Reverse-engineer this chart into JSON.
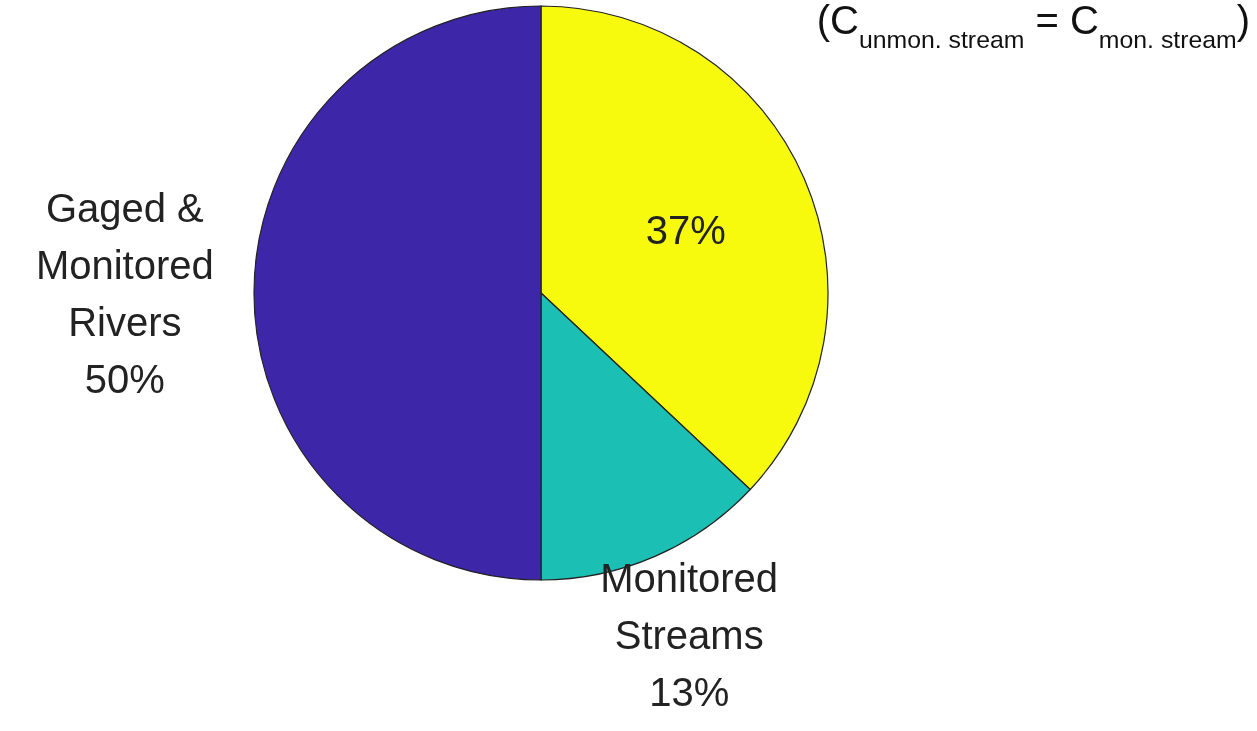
{
  "chart_data": {
    "type": "pie",
    "categories": [
      null,
      "Monitored Streams",
      "Gaged & Monitored Rivers"
    ],
    "values": [
      37,
      13,
      50
    ],
    "colors": [
      "#f8fa0d",
      "#1bbfb4",
      "#3d26a8"
    ],
    "value_labels": [
      "37%",
      "13%",
      "50%"
    ],
    "annotations": [
      "(C$_{unmon. stream}$ = C$_{mon. stream}$)"
    ]
  }
}
